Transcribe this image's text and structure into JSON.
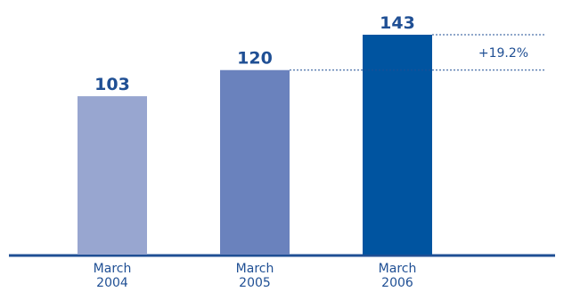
{
  "chart_data": {
    "type": "bar",
    "categories": [
      "March\n2004",
      "March\n2005",
      "March\n2006"
    ],
    "values": [
      103,
      120,
      143
    ],
    "value_labels": [
      "103",
      "120",
      "143"
    ],
    "bar_colors": [
      "#98a6d0",
      "#6a82bd",
      "#0054a0"
    ],
    "annotation": {
      "text": "+19.2%",
      "from_value": 120,
      "to_value": 143
    },
    "title": "",
    "xlabel": "",
    "ylabel": "",
    "ylim": [
      0,
      143
    ],
    "grid": false,
    "legend": "none"
  },
  "colors": {
    "text": "#1f4f94",
    "baseline": "#1f4f94",
    "dotted_line": "#1f4f94"
  }
}
